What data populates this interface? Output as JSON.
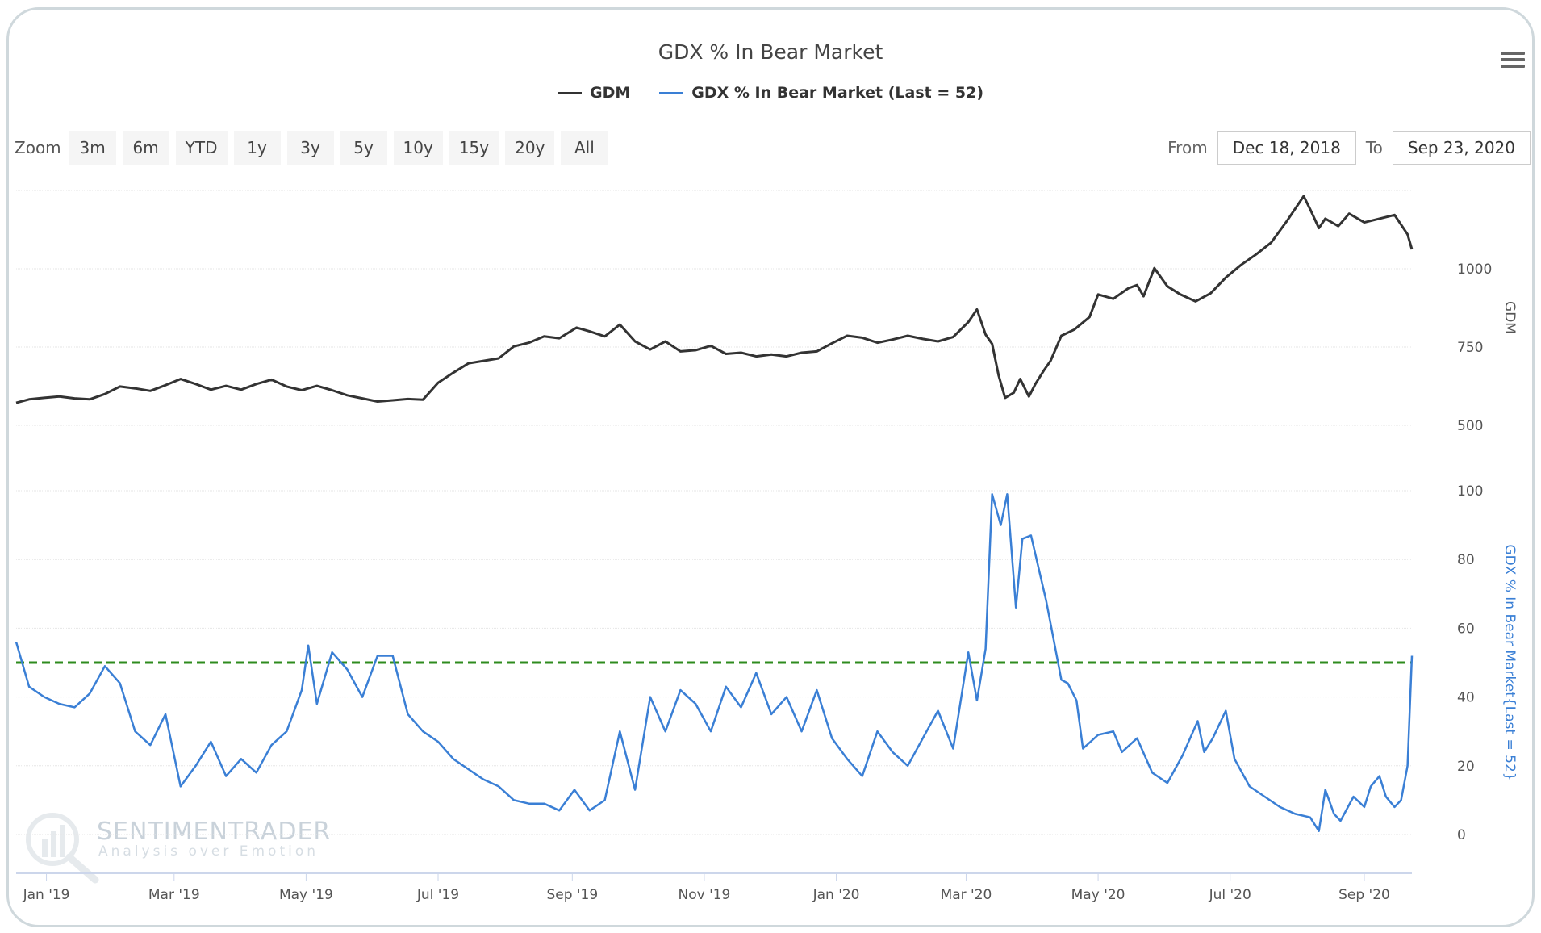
{
  "title": "GDX % In Bear Market",
  "legend": [
    {
      "label": "GDM",
      "color": "#333333"
    },
    {
      "label": "GDX % In Bear Market (Last = 52)",
      "color": "#3a7fd5"
    }
  ],
  "menu_icon": "hamburger-menu-icon",
  "zoom": {
    "label": "Zoom",
    "buttons": [
      "3m",
      "6m",
      "YTD",
      "1y",
      "3y",
      "5y",
      "10y",
      "15y",
      "20y",
      "All"
    ]
  },
  "range": {
    "from_label": "From",
    "from_value": "Dec 18, 2018",
    "to_label": "To",
    "to_value": "Sep 23, 2020"
  },
  "watermark": {
    "brand": "SENTIMENTRADER",
    "tagline": "Analysis over Emotion"
  },
  "chart_data": {
    "type": "line",
    "title": "GDX % In Bear Market",
    "x_range": [
      "2018-12-18",
      "2020-09-23"
    ],
    "x_tick_labels": [
      {
        "date": "2019-01-01",
        "label": "Jan '19"
      },
      {
        "date": "2019-03-01",
        "label": "Mar '19"
      },
      {
        "date": "2019-05-01",
        "label": "May '19"
      },
      {
        "date": "2019-07-01",
        "label": "Jul '19"
      },
      {
        "date": "2019-09-01",
        "label": "Sep '19"
      },
      {
        "date": "2019-11-01",
        "label": "Nov '19"
      },
      {
        "date": "2020-01-01",
        "label": "Jan '20"
      },
      {
        "date": "2020-03-01",
        "label": "Mar '20"
      },
      {
        "date": "2020-05-01",
        "label": "May '20"
      },
      {
        "date": "2020-07-01",
        "label": "Jul '20"
      },
      {
        "date": "2020-09-01",
        "label": "Sep '20"
      }
    ],
    "panes": [
      {
        "name": "GDM",
        "axis_title": "GDM",
        "axis_color": "#555555",
        "ylim": [
          500,
          1250
        ],
        "yticks": [
          500,
          750,
          1000
        ],
        "grid": true
      },
      {
        "name": "GDX % In Bear Market (Last = 52)",
        "axis_title": "GDX % In Bear Market{Last = 52}",
        "axis_color": "#3a7fd5",
        "ylim": [
          0,
          100
        ],
        "yticks": [
          0,
          20,
          40,
          60,
          80,
          100
        ],
        "grid": true,
        "reference_line": {
          "value": 50,
          "color": "#2e8b1e",
          "style": "dashed"
        }
      }
    ],
    "series": [
      {
        "name": "GDM",
        "pane": 0,
        "color": "#333333",
        "points": [
          [
            "2018-12-18",
            572
          ],
          [
            "2018-12-24",
            583
          ],
          [
            "2018-12-31",
            588
          ],
          [
            "2019-01-07",
            592
          ],
          [
            "2019-01-14",
            586
          ],
          [
            "2019-01-21",
            583
          ],
          [
            "2019-01-28",
            600
          ],
          [
            "2019-02-04",
            624
          ],
          [
            "2019-02-11",
            618
          ],
          [
            "2019-02-18",
            610
          ],
          [
            "2019-02-25",
            628
          ],
          [
            "2019-03-04",
            648
          ],
          [
            "2019-03-11",
            632
          ],
          [
            "2019-03-18",
            614
          ],
          [
            "2019-03-25",
            626
          ],
          [
            "2019-04-01",
            614
          ],
          [
            "2019-04-08",
            632
          ],
          [
            "2019-04-15",
            646
          ],
          [
            "2019-04-22",
            624
          ],
          [
            "2019-04-29",
            612
          ],
          [
            "2019-05-06",
            626
          ],
          [
            "2019-05-13",
            612
          ],
          [
            "2019-05-20",
            596
          ],
          [
            "2019-05-27",
            586
          ],
          [
            "2019-06-03",
            576
          ],
          [
            "2019-06-10",
            580
          ],
          [
            "2019-06-17",
            584
          ],
          [
            "2019-06-24",
            582
          ],
          [
            "2019-07-01",
            636
          ],
          [
            "2019-07-08",
            668
          ],
          [
            "2019-07-15",
            698
          ],
          [
            "2019-07-22",
            706
          ],
          [
            "2019-07-29",
            714
          ],
          [
            "2019-08-05",
            752
          ],
          [
            "2019-08-12",
            764
          ],
          [
            "2019-08-19",
            784
          ],
          [
            "2019-08-26",
            778
          ],
          [
            "2019-09-03",
            812
          ],
          [
            "2019-09-09",
            800
          ],
          [
            "2019-09-16",
            784
          ],
          [
            "2019-09-23",
            822
          ],
          [
            "2019-09-30",
            768
          ],
          [
            "2019-10-07",
            742
          ],
          [
            "2019-10-14",
            768
          ],
          [
            "2019-10-21",
            736
          ],
          [
            "2019-10-28",
            740
          ],
          [
            "2019-11-04",
            754
          ],
          [
            "2019-11-11",
            728
          ],
          [
            "2019-11-18",
            732
          ],
          [
            "2019-11-25",
            720
          ],
          [
            "2019-12-02",
            726
          ],
          [
            "2019-12-09",
            720
          ],
          [
            "2019-12-16",
            732
          ],
          [
            "2019-12-23",
            736
          ],
          [
            "2019-12-30",
            762
          ],
          [
            "2020-01-06",
            786
          ],
          [
            "2020-01-13",
            780
          ],
          [
            "2020-01-20",
            764
          ],
          [
            "2020-01-27",
            774
          ],
          [
            "2020-02-03",
            786
          ],
          [
            "2020-02-10",
            776
          ],
          [
            "2020-02-17",
            768
          ],
          [
            "2020-02-24",
            782
          ],
          [
            "2020-03-02",
            830
          ],
          [
            "2020-03-06",
            870
          ],
          [
            "2020-03-10",
            790
          ],
          [
            "2020-03-13",
            760
          ],
          [
            "2020-03-16",
            660
          ],
          [
            "2020-03-19",
            588
          ],
          [
            "2020-03-23",
            604
          ],
          [
            "2020-03-26",
            648
          ],
          [
            "2020-03-30",
            592
          ],
          [
            "2020-04-02",
            632
          ],
          [
            "2020-04-06",
            676
          ],
          [
            "2020-04-09",
            706
          ],
          [
            "2020-04-14",
            786
          ],
          [
            "2020-04-20",
            806
          ],
          [
            "2020-04-27",
            846
          ],
          [
            "2020-05-01",
            918
          ],
          [
            "2020-05-08",
            904
          ],
          [
            "2020-05-15",
            938
          ],
          [
            "2020-05-19",
            948
          ],
          [
            "2020-05-22",
            912
          ],
          [
            "2020-05-27",
            1002
          ],
          [
            "2020-06-02",
            944
          ],
          [
            "2020-06-08",
            918
          ],
          [
            "2020-06-15",
            896
          ],
          [
            "2020-06-22",
            922
          ],
          [
            "2020-06-29",
            972
          ],
          [
            "2020-07-06",
            1012
          ],
          [
            "2020-07-13",
            1046
          ],
          [
            "2020-07-20",
            1084
          ],
          [
            "2020-07-27",
            1150
          ],
          [
            "2020-08-04",
            1232
          ],
          [
            "2020-08-07",
            1190
          ],
          [
            "2020-08-11",
            1130
          ],
          [
            "2020-08-14",
            1160
          ],
          [
            "2020-08-20",
            1136
          ],
          [
            "2020-08-25",
            1176
          ],
          [
            "2020-09-01",
            1148
          ],
          [
            "2020-09-08",
            1160
          ],
          [
            "2020-09-15",
            1172
          ],
          [
            "2020-09-21",
            1110
          ],
          [
            "2020-09-23",
            1062
          ]
        ]
      },
      {
        "name": "GDX % In Bear Market (Last = 52)",
        "pane": 1,
        "color": "#3a7fd5",
        "points": [
          [
            "2018-12-18",
            56
          ],
          [
            "2018-12-24",
            43
          ],
          [
            "2018-12-31",
            40
          ],
          [
            "2019-01-07",
            38
          ],
          [
            "2019-01-14",
            37
          ],
          [
            "2019-01-21",
            41
          ],
          [
            "2019-01-28",
            49
          ],
          [
            "2019-02-04",
            44
          ],
          [
            "2019-02-11",
            30
          ],
          [
            "2019-02-18",
            26
          ],
          [
            "2019-02-25",
            35
          ],
          [
            "2019-03-04",
            14
          ],
          [
            "2019-03-11",
            20
          ],
          [
            "2019-03-18",
            27
          ],
          [
            "2019-03-25",
            17
          ],
          [
            "2019-04-01",
            22
          ],
          [
            "2019-04-08",
            18
          ],
          [
            "2019-04-15",
            26
          ],
          [
            "2019-04-22",
            30
          ],
          [
            "2019-04-29",
            42
          ],
          [
            "2019-05-02",
            55
          ],
          [
            "2019-05-06",
            38
          ],
          [
            "2019-05-13",
            53
          ],
          [
            "2019-05-20",
            48
          ],
          [
            "2019-05-27",
            40
          ],
          [
            "2019-06-03",
            52
          ],
          [
            "2019-06-10",
            52
          ],
          [
            "2019-06-17",
            35
          ],
          [
            "2019-06-24",
            30
          ],
          [
            "2019-07-01",
            27
          ],
          [
            "2019-07-08",
            22
          ],
          [
            "2019-07-15",
            19
          ],
          [
            "2019-07-22",
            16
          ],
          [
            "2019-07-29",
            14
          ],
          [
            "2019-08-05",
            10
          ],
          [
            "2019-08-12",
            9
          ],
          [
            "2019-08-19",
            9
          ],
          [
            "2019-08-26",
            7
          ],
          [
            "2019-09-02",
            13
          ],
          [
            "2019-09-09",
            7
          ],
          [
            "2019-09-16",
            10
          ],
          [
            "2019-09-23",
            30
          ],
          [
            "2019-09-30",
            13
          ],
          [
            "2019-10-07",
            40
          ],
          [
            "2019-10-14",
            30
          ],
          [
            "2019-10-21",
            42
          ],
          [
            "2019-10-28",
            38
          ],
          [
            "2019-11-04",
            30
          ],
          [
            "2019-11-11",
            43
          ],
          [
            "2019-11-18",
            37
          ],
          [
            "2019-11-25",
            47
          ],
          [
            "2019-12-02",
            35
          ],
          [
            "2019-12-09",
            40
          ],
          [
            "2019-12-16",
            30
          ],
          [
            "2019-12-23",
            42
          ],
          [
            "2019-12-30",
            28
          ],
          [
            "2020-01-06",
            22
          ],
          [
            "2020-01-13",
            17
          ],
          [
            "2020-01-20",
            30
          ],
          [
            "2020-01-27",
            24
          ],
          [
            "2020-02-03",
            20
          ],
          [
            "2020-02-10",
            28
          ],
          [
            "2020-02-17",
            36
          ],
          [
            "2020-02-24",
            25
          ],
          [
            "2020-03-02",
            53
          ],
          [
            "2020-03-06",
            39
          ],
          [
            "2020-03-10",
            54
          ],
          [
            "2020-03-13",
            99
          ],
          [
            "2020-03-17",
            90
          ],
          [
            "2020-03-20",
            99
          ],
          [
            "2020-03-24",
            66
          ],
          [
            "2020-03-27",
            86
          ],
          [
            "2020-03-31",
            87
          ],
          [
            "2020-04-07",
            68
          ],
          [
            "2020-04-14",
            45
          ],
          [
            "2020-04-17",
            44
          ],
          [
            "2020-04-21",
            39
          ],
          [
            "2020-04-24",
            25
          ],
          [
            "2020-05-01",
            29
          ],
          [
            "2020-05-08",
            30
          ],
          [
            "2020-05-12",
            24
          ],
          [
            "2020-05-19",
            28
          ],
          [
            "2020-05-26",
            18
          ],
          [
            "2020-06-02",
            15
          ],
          [
            "2020-06-09",
            23
          ],
          [
            "2020-06-16",
            33
          ],
          [
            "2020-06-19",
            24
          ],
          [
            "2020-06-23",
            28
          ],
          [
            "2020-06-29",
            36
          ],
          [
            "2020-07-03",
            22
          ],
          [
            "2020-07-10",
            14
          ],
          [
            "2020-07-17",
            11
          ],
          [
            "2020-07-24",
            8
          ],
          [
            "2020-07-31",
            6
          ],
          [
            "2020-08-07",
            5
          ],
          [
            "2020-08-11",
            1
          ],
          [
            "2020-08-14",
            13
          ],
          [
            "2020-08-18",
            6
          ],
          [
            "2020-08-21",
            4
          ],
          [
            "2020-08-27",
            11
          ],
          [
            "2020-09-01",
            8
          ],
          [
            "2020-09-04",
            14
          ],
          [
            "2020-09-08",
            17
          ],
          [
            "2020-09-11",
            11
          ],
          [
            "2020-09-15",
            8
          ],
          [
            "2020-09-18",
            10
          ],
          [
            "2020-09-21",
            20
          ],
          [
            "2020-09-23",
            52
          ]
        ]
      }
    ]
  }
}
